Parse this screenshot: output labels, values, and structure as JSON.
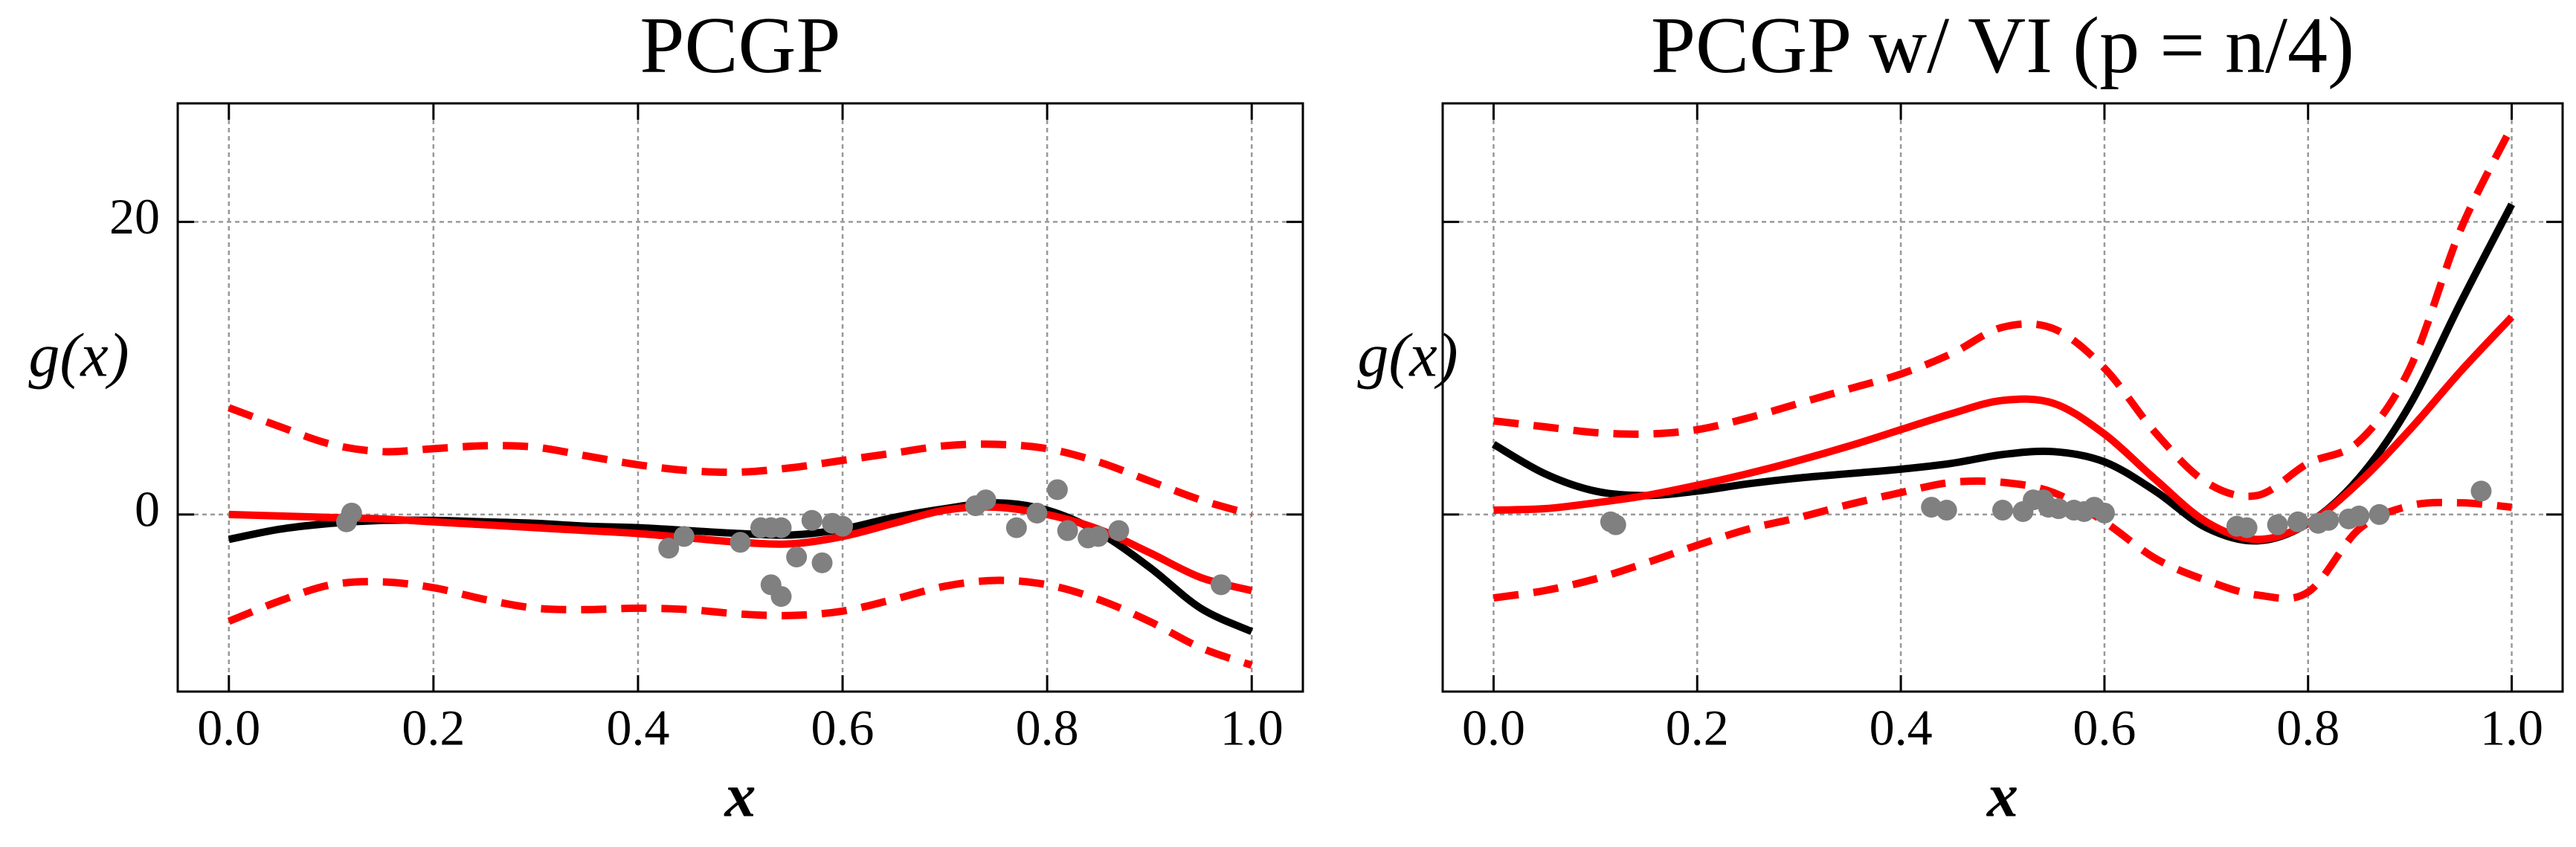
{
  "chart_data": [
    {
      "type": "line",
      "title": "PCGP",
      "xlabel": "x",
      "ylabel": "g(x)",
      "xlim": [
        -0.05,
        1.05
      ],
      "ylim": [
        -12.1,
        28.1
      ],
      "xticks": [
        0.0,
        0.2,
        0.4,
        0.6,
        0.8,
        1.0
      ],
      "yticks": [
        0,
        20
      ],
      "show_ytick_labels": true,
      "grid": true,
      "x": [
        0,
        0.05,
        0.1,
        0.15,
        0.2,
        0.25,
        0.3,
        0.35,
        0.4,
        0.45,
        0.5,
        0.55,
        0.6,
        0.65,
        0.7,
        0.75,
        0.8,
        0.85,
        0.9,
        0.95,
        1.0
      ],
      "series": [
        {
          "color": "#000000",
          "style": "solid",
          "values": [
            -1.7,
            -1.0,
            -0.6,
            -0.4,
            -0.4,
            -0.5,
            -0.6,
            -0.8,
            -0.9,
            -1.1,
            -1.3,
            -1.4,
            -1.0,
            -0.2,
            0.4,
            0.8,
            0.3,
            -1.2,
            -3.6,
            -6.4,
            -8.0
          ]
        },
        {
          "color": "#ff0000",
          "style": "solid",
          "values": [
            0,
            -0.1,
            -0.2,
            -0.3,
            -0.5,
            -0.7,
            -0.9,
            -1.1,
            -1.3,
            -1.6,
            -1.9,
            -2.0,
            -1.5,
            -0.6,
            0.3,
            0.5,
            0.0,
            -1.0,
            -2.6,
            -4.3,
            -5.2
          ]
        },
        {
          "color": "#ff0000",
          "style": "dashed",
          "values": [
            7.3,
            6.0,
            4.8,
            4.3,
            4.5,
            4.7,
            4.6,
            4.0,
            3.4,
            3.0,
            2.9,
            3.2,
            3.7,
            4.2,
            4.7,
            4.8,
            4.5,
            3.6,
            2.3,
            1.0,
            0.0
          ]
        },
        {
          "color": "#ff0000",
          "style": "dashed",
          "values": [
            -7.3,
            -5.9,
            -4.8,
            -4.6,
            -5.0,
            -5.8,
            -6.4,
            -6.5,
            -6.4,
            -6.5,
            -6.8,
            -6.9,
            -6.6,
            -5.8,
            -4.9,
            -4.5,
            -4.8,
            -5.8,
            -7.3,
            -9.1,
            -10.3
          ]
        }
      ],
      "points": {
        "color": "#808080",
        "x": [
          0.115,
          0.12,
          0.43,
          0.445,
          0.5,
          0.52,
          0.53,
          0.54,
          0.53,
          0.54,
          0.555,
          0.57,
          0.58,
          0.59,
          0.6,
          0.73,
          0.74,
          0.77,
          0.79,
          0.81,
          0.82,
          0.84,
          0.85,
          0.87,
          0.97
        ],
        "y": [
          -0.5,
          0.1,
          -2.3,
          -1.5,
          -1.9,
          -0.9,
          -0.9,
          -0.9,
          -4.8,
          -5.6,
          -2.9,
          -0.4,
          -3.3,
          -0.6,
          -0.8,
          0.6,
          1.0,
          -0.9,
          0.1,
          1.7,
          -1.1,
          -1.6,
          -1.5,
          -1.1,
          -4.8
        ]
      }
    },
    {
      "type": "line",
      "title": "PCGP w/ VI (p = n/4)",
      "xlabel": "x",
      "ylabel": "g(x)",
      "xlim": [
        -0.05,
        1.05
      ],
      "ylim": [
        -12.1,
        28.1
      ],
      "xticks": [
        0.0,
        0.2,
        0.4,
        0.6,
        0.8,
        1.0
      ],
      "yticks": [
        0,
        20
      ],
      "show_ytick_labels": false,
      "grid": true,
      "x": [
        0,
        0.05,
        0.1,
        0.15,
        0.2,
        0.25,
        0.3,
        0.35,
        0.4,
        0.45,
        0.5,
        0.55,
        0.6,
        0.65,
        0.7,
        0.75,
        0.8,
        0.85,
        0.9,
        0.95,
        1.0
      ],
      "series": [
        {
          "color": "#000000",
          "style": "solid",
          "values": [
            4.8,
            2.8,
            1.6,
            1.3,
            1.6,
            2.1,
            2.5,
            2.8,
            3.1,
            3.5,
            4.1,
            4.3,
            3.6,
            1.6,
            -0.9,
            -1.8,
            -0.6,
            2.5,
            7.5,
            14.5,
            21.2
          ]
        },
        {
          "color": "#ff0000",
          "style": "solid",
          "values": [
            0.3,
            0.4,
            0.8,
            1.3,
            2.0,
            2.8,
            3.7,
            4.7,
            5.8,
            6.9,
            7.8,
            7.6,
            5.5,
            2.4,
            -0.5,
            -1.7,
            -0.6,
            2.2,
            5.8,
            9.8,
            13.5
          ]
        },
        {
          "color": "#ff0000",
          "style": "dashed",
          "values": [
            6.4,
            6.0,
            5.6,
            5.5,
            5.8,
            6.6,
            7.6,
            8.6,
            9.6,
            11.0,
            12.8,
            12.7,
            10.0,
            5.6,
            2.2,
            1.3,
            3.5,
            5.0,
            10.0,
            19.5,
            26.5
          ]
        },
        {
          "color": "#ff0000",
          "style": "dashed",
          "values": [
            -5.7,
            -5.2,
            -4.4,
            -3.3,
            -2.1,
            -1.0,
            -0.2,
            0.7,
            1.5,
            2.2,
            2.2,
            1.5,
            -0.5,
            -3.0,
            -4.5,
            -5.5,
            -5.3,
            -1.0,
            0.6,
            0.8,
            0.5
          ]
        }
      ],
      "points": {
        "color": "#808080",
        "x": [
          0.115,
          0.12,
          0.43,
          0.445,
          0.5,
          0.52,
          0.53,
          0.54,
          0.545,
          0.555,
          0.57,
          0.58,
          0.59,
          0.6,
          0.73,
          0.74,
          0.77,
          0.79,
          0.81,
          0.82,
          0.84,
          0.85,
          0.87,
          0.97
        ],
        "y": [
          -0.5,
          -0.7,
          0.5,
          0.3,
          0.3,
          0.2,
          1.0,
          1.0,
          0.5,
          0.4,
          0.3,
          0.2,
          0.5,
          0.1,
          -0.8,
          -0.9,
          -0.7,
          -0.5,
          -0.6,
          -0.4,
          -0.3,
          -0.1,
          0.0,
          1.6
        ]
      }
    }
  ]
}
